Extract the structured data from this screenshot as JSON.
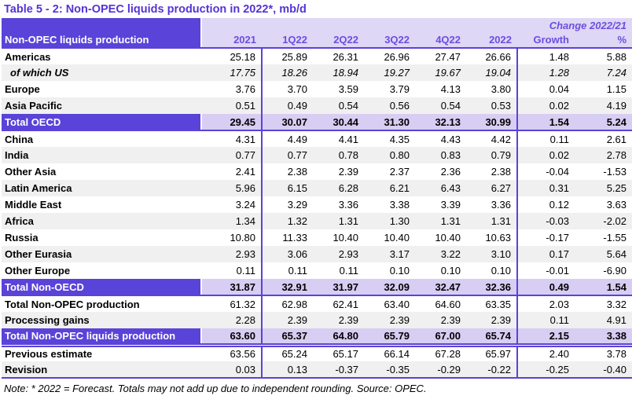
{
  "title": "Table 5 - 2: Non-OPEC liquids production in 2022*, mb/d",
  "note": "Note: * 2022 = Forecast. Totals may not add up due to independent rounding. Source: OPEC.",
  "colors": {
    "accent_purple": "#5a43d8",
    "header_lavender": "#ded7f6",
    "total_lavender": "#d8cdf2",
    "stripe_gray": "#f0f0f0",
    "header_text": "#6b4ee0",
    "title_text": "#5533d4"
  },
  "table": {
    "corner_header": "Non-OPEC liquids production",
    "change_header": "Change 2022/21",
    "columns": [
      "2021",
      "1Q22",
      "2Q22",
      "3Q22",
      "4Q22",
      "2022",
      "Growth",
      "%"
    ],
    "rows": [
      {
        "label": "Americas",
        "variant": "normal",
        "shade": false,
        "border": "none",
        "values": [
          "25.18",
          "25.89",
          "26.31",
          "26.96",
          "27.47",
          "26.66",
          "1.48",
          "5.88"
        ]
      },
      {
        "label": "of which US",
        "variant": "italic",
        "shade": true,
        "border": "none",
        "values": [
          "17.75",
          "18.26",
          "18.94",
          "19.27",
          "19.67",
          "19.04",
          "1.28",
          "7.24"
        ]
      },
      {
        "label": "Europe",
        "variant": "normal",
        "shade": false,
        "border": "none",
        "values": [
          "3.76",
          "3.70",
          "3.59",
          "3.79",
          "4.13",
          "3.80",
          "0.04",
          "1.15"
        ]
      },
      {
        "label": "Asia Pacific",
        "variant": "normal",
        "shade": true,
        "border": "none",
        "values": [
          "0.51",
          "0.49",
          "0.54",
          "0.56",
          "0.54",
          "0.53",
          "0.02",
          "4.19"
        ]
      },
      {
        "label": "Total OECD",
        "variant": "total",
        "shade": false,
        "border": "single",
        "values": [
          "29.45",
          "30.07",
          "30.44",
          "31.30",
          "32.13",
          "30.99",
          "1.54",
          "5.24"
        ]
      },
      {
        "label": "China",
        "variant": "normal",
        "shade": false,
        "border": "none",
        "values": [
          "4.31",
          "4.49",
          "4.41",
          "4.35",
          "4.43",
          "4.42",
          "0.11",
          "2.61"
        ]
      },
      {
        "label": "India",
        "variant": "normal",
        "shade": true,
        "border": "none",
        "values": [
          "0.77",
          "0.77",
          "0.78",
          "0.80",
          "0.83",
          "0.79",
          "0.02",
          "2.78"
        ]
      },
      {
        "label": "Other Asia",
        "variant": "normal",
        "shade": false,
        "border": "none",
        "values": [
          "2.41",
          "2.38",
          "2.39",
          "2.37",
          "2.36",
          "2.38",
          "-0.04",
          "-1.53"
        ]
      },
      {
        "label": "Latin America",
        "variant": "normal",
        "shade": true,
        "border": "none",
        "values": [
          "5.96",
          "6.15",
          "6.28",
          "6.21",
          "6.43",
          "6.27",
          "0.31",
          "5.25"
        ]
      },
      {
        "label": "Middle East",
        "variant": "normal",
        "shade": false,
        "border": "none",
        "values": [
          "3.24",
          "3.29",
          "3.36",
          "3.38",
          "3.39",
          "3.36",
          "0.12",
          "3.63"
        ]
      },
      {
        "label": "Africa",
        "variant": "normal",
        "shade": true,
        "border": "none",
        "values": [
          "1.34",
          "1.32",
          "1.31",
          "1.30",
          "1.31",
          "1.31",
          "-0.03",
          "-2.02"
        ]
      },
      {
        "label": "Russia",
        "variant": "normal",
        "shade": false,
        "border": "none",
        "values": [
          "10.80",
          "11.33",
          "10.40",
          "10.40",
          "10.40",
          "10.63",
          "-0.17",
          "-1.55"
        ]
      },
      {
        "label": "Other Eurasia",
        "variant": "normal",
        "shade": true,
        "border": "none",
        "values": [
          "2.93",
          "3.06",
          "2.93",
          "3.17",
          "3.22",
          "3.10",
          "0.17",
          "5.64"
        ]
      },
      {
        "label": "Other Europe",
        "variant": "normal",
        "shade": false,
        "border": "none",
        "values": [
          "0.11",
          "0.11",
          "0.11",
          "0.10",
          "0.10",
          "0.10",
          "-0.01",
          "-6.90"
        ]
      },
      {
        "label": "Total Non-OECD",
        "variant": "total",
        "shade": false,
        "border": "single",
        "values": [
          "31.87",
          "32.91",
          "31.97",
          "32.09",
          "32.47",
          "32.36",
          "0.49",
          "1.54"
        ]
      },
      {
        "label": "Total Non-OPEC production",
        "variant": "normal",
        "shade": false,
        "border": "none",
        "values": [
          "61.32",
          "62.98",
          "62.41",
          "63.40",
          "64.60",
          "63.35",
          "2.03",
          "3.32"
        ]
      },
      {
        "label": "Processing gains",
        "variant": "normal",
        "shade": true,
        "border": "none",
        "values": [
          "2.28",
          "2.39",
          "2.39",
          "2.39",
          "2.39",
          "2.39",
          "0.11",
          "4.91"
        ]
      },
      {
        "label": "Total Non-OPEC liquids production",
        "variant": "total",
        "shade": false,
        "border": "double",
        "values": [
          "63.60",
          "65.37",
          "64.80",
          "65.79",
          "67.00",
          "65.74",
          "2.15",
          "3.38"
        ]
      },
      {
        "label": "Previous estimate",
        "variant": "normal",
        "shade": false,
        "border": "none",
        "values": [
          "63.56",
          "65.24",
          "65.17",
          "66.14",
          "67.28",
          "65.97",
          "2.40",
          "3.78"
        ]
      },
      {
        "label": "Revision",
        "variant": "normal",
        "shade": true,
        "border": "single",
        "values": [
          "0.03",
          "0.13",
          "-0.37",
          "-0.35",
          "-0.29",
          "-0.22",
          "-0.25",
          "-0.40"
        ]
      }
    ]
  }
}
